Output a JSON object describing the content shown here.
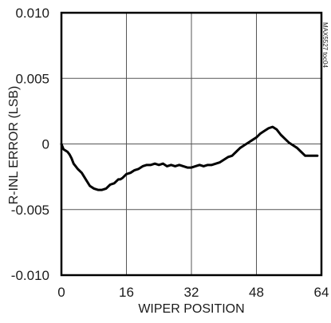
{
  "chart_data": {
    "type": "line",
    "xlabel": "WIPER POSITION",
    "ylabel": "R-INL ERROR (LSB)",
    "xlim": [
      0,
      64
    ],
    "ylim": [
      -0.01,
      0.01
    ],
    "x_ticks": [
      0,
      16,
      32,
      48,
      64
    ],
    "x_tick_labels": [
      "0",
      "16",
      "32",
      "48",
      "64"
    ],
    "y_ticks": [
      0.01,
      0.005,
      0,
      -0.005,
      -0.01
    ],
    "y_tick_labels": [
      "0.010",
      "0.005",
      "0",
      "-0.005",
      "-0.010"
    ],
    "grid": true,
    "legend": "none",
    "side_code": "MAX5527 toc04",
    "line_color": "#000000",
    "series": [
      {
        "x": [
          0,
          0.5,
          1,
          1.5,
          2,
          2.5,
          3,
          3.5,
          4,
          5,
          6,
          7,
          8,
          9,
          10,
          11,
          12,
          13,
          14,
          14.5,
          15,
          16,
          17,
          18,
          19,
          20,
          21,
          22,
          23,
          24,
          25,
          26,
          27,
          28,
          29,
          30,
          31,
          32,
          33,
          34,
          35,
          36,
          37,
          38,
          39,
          40,
          41,
          42,
          43,
          44,
          45,
          46,
          47,
          48,
          49,
          50,
          51,
          52,
          53,
          54,
          55,
          56,
          57,
          58,
          59,
          60,
          61,
          62,
          63
        ],
        "values": [
          0.0,
          -0.0004,
          -0.0005,
          -0.0006,
          -0.0008,
          -0.0011,
          -0.0015,
          -0.0017,
          -0.0019,
          -0.0022,
          -0.0027,
          -0.0032,
          -0.0034,
          -0.0035,
          -0.0035,
          -0.0034,
          -0.0031,
          -0.003,
          -0.0027,
          -0.0027,
          -0.0026,
          -0.0023,
          -0.0022,
          -0.002,
          -0.0019,
          -0.0017,
          -0.0016,
          -0.0016,
          -0.0015,
          -0.0016,
          -0.0015,
          -0.0017,
          -0.0016,
          -0.0017,
          -0.0016,
          -0.0017,
          -0.0018,
          -0.0018,
          -0.0017,
          -0.0016,
          -0.0017,
          -0.0016,
          -0.0016,
          -0.0015,
          -0.0014,
          -0.0012,
          -0.001,
          -0.0009,
          -0.0006,
          -0.0003,
          -0.0001,
          0.0001,
          0.0003,
          0.0005,
          0.0008,
          0.001,
          0.0012,
          0.0013,
          0.0011,
          0.0007,
          0.0004,
          0.0001,
          -0.0001,
          -0.0003,
          -0.0006,
          -0.0009,
          -0.0009,
          -0.0009,
          -0.0009
        ]
      }
    ]
  }
}
